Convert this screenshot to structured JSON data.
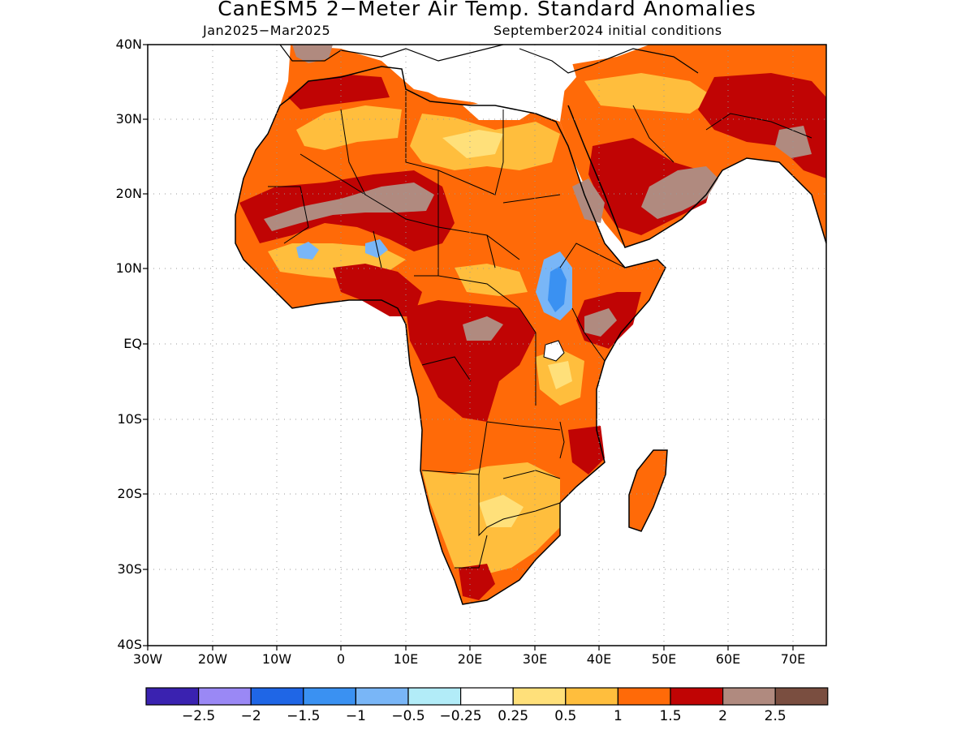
{
  "title": "CanESM5 2−Meter Air Temp. Standard Anomalies",
  "valid_period": "Jan2025−Mar2025",
  "initial_conditions": "September2024 initial conditions",
  "lat_labels": [
    "40N",
    "30N",
    "20N",
    "10N",
    "EQ",
    "10S",
    "20S",
    "30S",
    "40S"
  ],
  "lon_labels": [
    "30W",
    "20W",
    "10W",
    "0",
    "10E",
    "20E",
    "30E",
    "40E",
    "50E",
    "60E",
    "70E"
  ],
  "colorbar": {
    "colors": [
      "#3a22b0",
      "#9a88f5",
      "#1f66e6",
      "#3a91f2",
      "#79b6f7",
      "#b2ecf8",
      "#ffffff",
      "#ffe07a",
      "#ffbe3d",
      "#ff6a08",
      "#c00404",
      "#b08a7f",
      "#7a4e40"
    ],
    "labels": [
      "−2.5",
      "−2",
      "−1.5",
      "−1",
      "−0.5",
      "−0.25",
      "0.25",
      "0.5",
      "1",
      "1.5",
      "2",
      "2.5"
    ]
  },
  "colors": {
    "grid": "#999999",
    "outline": "#000000"
  }
}
